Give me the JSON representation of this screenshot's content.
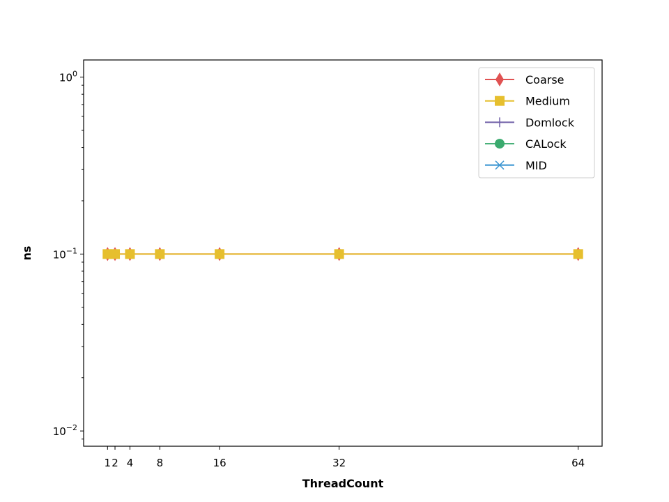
{
  "chart_data": {
    "type": "line",
    "title": "",
    "xlabel": "ThreadCount",
    "ylabel": "ns",
    "yscale": "log",
    "grid": false,
    "legend_position": "top-right",
    "x": [
      1,
      2,
      4,
      8,
      16,
      32,
      64
    ],
    "xticks": [
      1,
      2,
      4,
      8,
      16,
      32,
      64
    ],
    "xtick_labels": [
      "1",
      "2",
      "4",
      "8",
      "16",
      "32",
      "64"
    ],
    "xlim": [
      -2.2,
      67.2
    ],
    "ylim": [
      0.0082,
      1.25
    ],
    "yticks": [
      {
        "value": 1,
        "base": "10",
        "exp": "0"
      },
      {
        "value": 0.1,
        "base": "10",
        "exp": "−1"
      },
      {
        "value": 0.01,
        "base": "10",
        "exp": "−2"
      }
    ],
    "series": [
      {
        "name": "Coarse",
        "color": "#e05252",
        "marker": "thin_diamond",
        "values": [
          0.1,
          0.1,
          0.1,
          0.1,
          0.1,
          0.1,
          0.1
        ]
      },
      {
        "name": "Medium",
        "color": "#e6bf2e",
        "marker": "square",
        "values": [
          0.1,
          0.1,
          0.1,
          0.1,
          0.1,
          0.1,
          0.1
        ]
      },
      {
        "name": "Domlock",
        "color": "#7060a8",
        "marker": "plus",
        "values": [
          null,
          null,
          null,
          null,
          null,
          null,
          null
        ]
      },
      {
        "name": "CALock",
        "color": "#3aaa6e",
        "marker": "circle",
        "values": [
          null,
          null,
          null,
          null,
          null,
          null,
          null
        ]
      },
      {
        "name": "MID",
        "color": "#3c96d2",
        "marker": "x",
        "values": [
          null,
          null,
          null,
          null,
          null,
          null,
          null
        ]
      }
    ]
  }
}
